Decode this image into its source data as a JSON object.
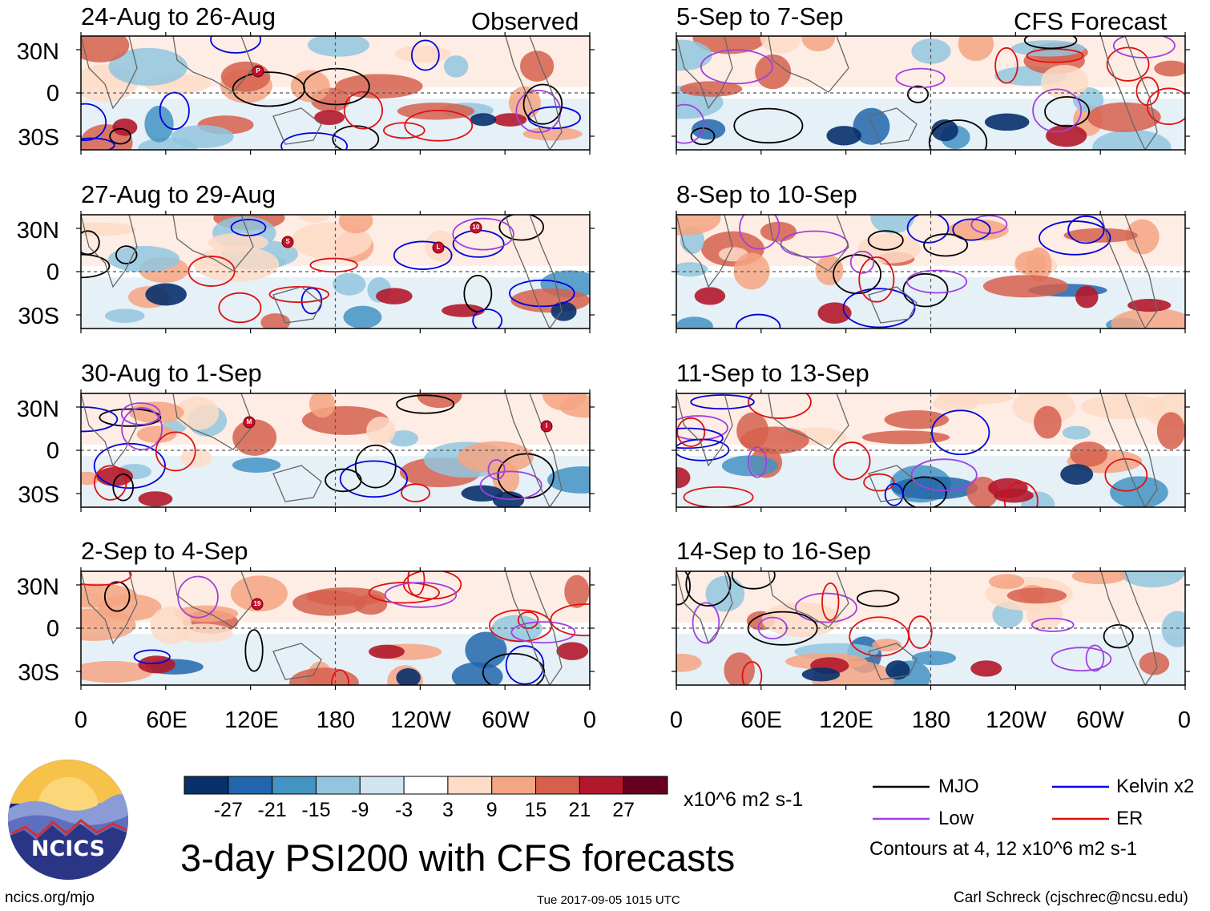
{
  "panels_left": [
    {
      "title": "24-Aug to 26-Aug",
      "tag": "Observed",
      "storms": [
        "P"
      ]
    },
    {
      "title": "27-Aug to 29-Aug",
      "tag": "",
      "storms": [
        "S",
        "L",
        "10"
      ]
    },
    {
      "title": "30-Aug to 1-Sep",
      "tag": "",
      "storms": [
        "M",
        "I"
      ]
    },
    {
      "title": "2-Sep to 4-Sep",
      "tag": "",
      "storms": [
        "19"
      ]
    }
  ],
  "panels_right": [
    {
      "title": "5-Sep to 7-Sep",
      "tag": "CFS Forecast"
    },
    {
      "title": "8-Sep to 10-Sep",
      "tag": ""
    },
    {
      "title": "11-Sep to 13-Sep",
      "tag": ""
    },
    {
      "title": "14-Sep to 16-Sep",
      "tag": ""
    }
  ],
  "lat_labels": [
    "30N",
    "0",
    "30S"
  ],
  "lon_labels": [
    "0",
    "60E",
    "120E",
    "180",
    "120W",
    "60W",
    "0"
  ],
  "colorbar": {
    "colors": [
      "#08306b",
      "#2166ac",
      "#4393c3",
      "#92c5de",
      "#d1e5f0",
      "#ffffff",
      "#fddbc7",
      "#f4a582",
      "#d6604d",
      "#b2182b",
      "#67001f"
    ],
    "labels": [
      "-27",
      "-21",
      "-15",
      "-9",
      "-3",
      "3",
      "9",
      "15",
      "21",
      "27"
    ],
    "units": "x10^6 m2 s-1"
  },
  "legend": {
    "items": [
      {
        "label": "MJO",
        "color": "#000000"
      },
      {
        "label": "Kelvin x2",
        "color": "#0000dd"
      },
      {
        "label": "Low",
        "color": "#a040e0"
      },
      {
        "label": "ER",
        "color": "#e01010"
      }
    ],
    "note": "Contours at 4, 12 x10^6 m2 s-1"
  },
  "main_title": "3-day PSI200 with CFS forecasts",
  "logo_text": "NCICS",
  "footer": {
    "left": "ncics.org/mjo",
    "center": "Tue 2017-09-05 1015 UTC",
    "right": "Carl Schreck (cjschrec@ncsu.edu)"
  }
}
